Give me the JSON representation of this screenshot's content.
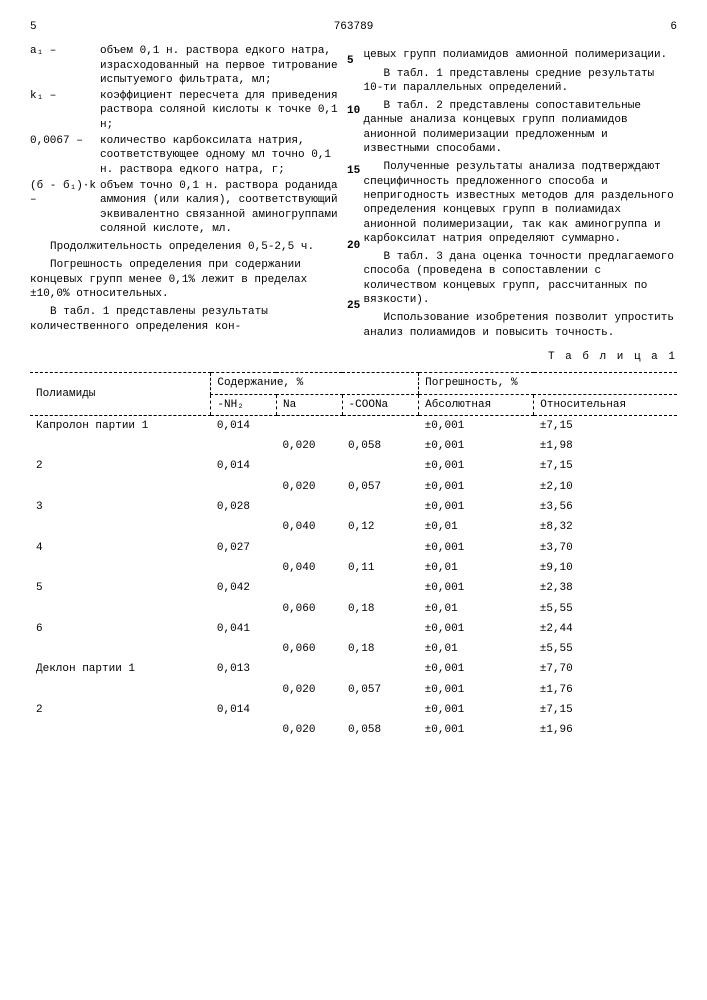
{
  "header": {
    "left_page": "5",
    "doc_number": "763789",
    "right_page": "6"
  },
  "line_numbers": [
    "5",
    "10",
    "15",
    "20",
    "25"
  ],
  "defs": [
    {
      "term": "a₁ –",
      "desc": "объем 0,1 н. раствора едкого натра, израсходованный на первое титрование испытуемого фильтрата, мл;"
    },
    {
      "term": "k₁ –",
      "desc": "коэффициент пересчета для приведения раствора соляной кислоты к точке 0,1 н;"
    },
    {
      "term": "0,0067 –",
      "desc": "количество карбоксилата натрия, соответствующее одному мл точно 0,1 н. раствора едкого натра, г;"
    },
    {
      "term": "(б - б₁)·k –",
      "desc": "объем точно 0,1 н. раствора роданида аммония (или калия), соответствующий эквивалентно связанной аминогруппами соляной кислоте, мл."
    }
  ],
  "left_paras": [
    "Продолжительность определения 0,5-2,5 ч.",
    "Погрешность определения при содержании концевых групп менее 0,1% лежит в пределах ±10,0% относительных.",
    "В табл. 1 представлены результаты количественного определения кон-"
  ],
  "right_paras": [
    "цевых групп полиамидов амионной полимеризации.",
    "В табл. 1 представлены средние результаты 10-ти параллельных определений.",
    "В табл. 2 представлены сопоставительные данные анализа концевых групп полиамидов анионной полимеризации предложенным и известными способами.",
    "Полученные результаты анализа подтверждают специфичность предложенного способа и непригодность известных методов для раздельного определения концевых групп в полиамидах анионной полимеризации, так как аминогруппа и карбоксилат натрия определяют суммарно.",
    "В табл. 3 дана оценка точности предлагаемого способа (проведена в сопоставлении с количеством концевых групп, рассчитанных по вязкости).",
    "Использование изобретения позволит упростить анализ полиамидов и повысить точность."
  ],
  "table": {
    "title": "Т а б л и ц а 1",
    "group_headers": {
      "content": "Содержание, %",
      "error": "Погрешность, %"
    },
    "columns": [
      "Полиамиды",
      "-NH₂",
      "Na",
      "-COONa",
      "Абсолютная",
      "Относительная"
    ],
    "rows": [
      [
        "Капролон партии 1",
        "0,014",
        "",
        "",
        "±0,001",
        "±7,15"
      ],
      [
        "",
        "",
        "0,020",
        "0,058",
        "±0,001",
        "±1,98"
      ],
      [
        "2",
        "0,014",
        "",
        "",
        "±0,001",
        "±7,15"
      ],
      [
        "",
        "",
        "0,020",
        "0,057",
        "±0,001",
        "±2,10"
      ],
      [
        "3",
        "0,028",
        "",
        "",
        "±0,001",
        "±3,56"
      ],
      [
        "",
        "",
        "0,040",
        "0,12",
        "±0,01",
        "±8,32"
      ],
      [
        "4",
        "0,027",
        "",
        "",
        "±0,001",
        "±3,70"
      ],
      [
        "",
        "",
        "0,040",
        "0,11",
        "±0,01",
        "±9,10"
      ],
      [
        "5",
        "0,042",
        "",
        "",
        "±0,001",
        "±2,38"
      ],
      [
        "",
        "",
        "0,060",
        "0,18",
        "±0,01",
        "±5,55"
      ],
      [
        "6",
        "0,041",
        "",
        "",
        "±0,001",
        "±2,44"
      ],
      [
        "",
        "",
        "0,060",
        "0,18",
        "±0,01",
        "±5,55"
      ],
      [
        "Деклон партии 1",
        "0,013",
        "",
        "",
        "±0,001",
        "±7,70"
      ],
      [
        "",
        "",
        "0,020",
        "0,057",
        "±0,001",
        "±1,76"
      ],
      [
        "2",
        "0,014",
        "",
        "",
        "±0,001",
        "±7,15"
      ],
      [
        "",
        "",
        "0,020",
        "0,058",
        "±0,001",
        "±1,96"
      ]
    ]
  }
}
